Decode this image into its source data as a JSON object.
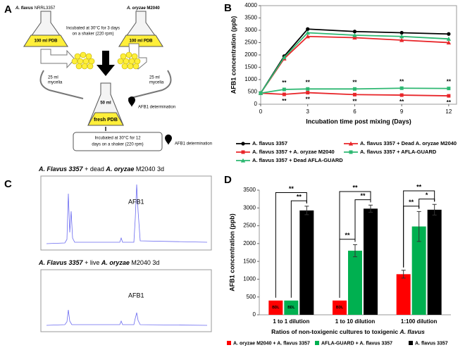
{
  "panel_labels": [
    "A",
    "B",
    "C",
    "D"
  ],
  "diagram": {
    "flask_left": {
      "species": "A. flavus",
      "strain": "NRRL3357",
      "medium": "100 ml PDB"
    },
    "flask_right": {
      "species": "A. oryzae",
      "strain": "M2040",
      "medium": "100 ml PDB"
    },
    "incubation_1": [
      "Incubated at 30°C for 3 days",
      "on a shaker (220 rpm)"
    ],
    "mycelia_left": [
      "25 ml",
      "mycelia"
    ],
    "mycelia_right": [
      "25 ml",
      "mycelia"
    ],
    "flask_mix": {
      "volume": "50 ml",
      "medium": "fresh PDB"
    },
    "determination_1": "AFB1 determination",
    "incubation_2": [
      "Incubated at 30°C for 12",
      "days on a shaker (220 rpm)"
    ],
    "determination_2": "AFB1 determination"
  },
  "chromatograms": [
    {
      "title_species": "A. Flavus",
      "title_strain": "3357",
      "title_mid": "+ dead",
      "title_partner": "A. oryzae",
      "title_end": "M2040  3d",
      "peak_label": "AFB1"
    },
    {
      "title_species": "A. Flavus",
      "title_strain": "3357",
      "title_mid": "+ live",
      "title_partner": "A. oryzae",
      "title_end": "M2040  3d",
      "peak_label": "AFB1"
    }
  ],
  "chart_data": [
    {
      "type": "line",
      "ylabel": "AFB1 concentration (ppb)",
      "xlabel": "Incubation time post mixing (Days)",
      "x": [
        0,
        1.5,
        3,
        6,
        9,
        12
      ],
      "xlim": [
        0,
        12.5
      ],
      "xticks": [
        0,
        3,
        6,
        9,
        12
      ],
      "ylim": [
        0,
        4000
      ],
      "yticks": [
        0,
        500,
        1000,
        1500,
        2000,
        2500,
        3000,
        3500,
        4000
      ],
      "series": [
        {
          "name": "A. flavus 3357",
          "color": "#000000",
          "marker": "circle",
          "values": [
            450,
            1950,
            3050,
            2950,
            2900,
            2850
          ]
        },
        {
          "name": "A. flavus 3357 + Dead A. oryzae M2040",
          "color": "#e8262a",
          "marker": "triangle",
          "values": [
            450,
            1850,
            2750,
            2700,
            2600,
            2500
          ]
        },
        {
          "name": "A. flavus 3357 + A. oryzae M2040",
          "color": "#e8262a",
          "marker": "square",
          "values": [
            450,
            400,
            470,
            390,
            370,
            340
          ],
          "significance": [
            null,
            "**",
            "**",
            "**",
            "**",
            "**"
          ]
        },
        {
          "name": "A. flavus 3357 + AFLA-GUARD",
          "color": "#2eb872",
          "marker": "square",
          "values": [
            450,
            600,
            620,
            620,
            650,
            640
          ],
          "significance": [
            null,
            "**",
            "**",
            "**",
            "**",
            "**"
          ]
        },
        {
          "name": "A. flavus 3357 + Dead AFLA-GUARD",
          "color": "#2eb872",
          "marker": "triangle",
          "values": [
            450,
            1900,
            2900,
            2800,
            2750,
            2650
          ]
        }
      ]
    },
    {
      "type": "bar",
      "ylabel": "AFB1 concentration (ppb)",
      "xlabel_prefix": "Ratios of non-toxigenic cultures to toxigenic",
      "xlabel_species": "A. flavus",
      "categories": [
        "1 to 1 dilution",
        "1 to 10 dilution",
        "1:100 dilution"
      ],
      "ylim": [
        0,
        3500
      ],
      "yticks": [
        0,
        500,
        1000,
        1500,
        2000,
        2500,
        3000,
        3500
      ],
      "series": [
        {
          "name": "A. oryzae M2040 + A. flavus 3357",
          "color": "#ff0000",
          "values": [
            400,
            400,
            1140
          ],
          "value_labels": [
            "BDL",
            "BDL",
            null
          ],
          "errors": [
            null,
            null,
            110
          ]
        },
        {
          "name": "AFLA-GUARD + A. flavus 3357",
          "color": "#00b050",
          "values": [
            400,
            1800,
            2480
          ],
          "value_labels": [
            "BDL",
            null,
            null
          ],
          "errors": [
            null,
            170,
            420
          ]
        },
        {
          "name": "A. flavus 3357",
          "color": "#000000",
          "values": [
            2930,
            2980,
            2950
          ],
          "errors": [
            120,
            100,
            150
          ]
        }
      ],
      "comparisons": [
        {
          "category": 0,
          "series": [
            0,
            2
          ],
          "label": "**"
        },
        {
          "category": 0,
          "series": [
            1,
            2
          ],
          "label": "**"
        },
        {
          "category": 1,
          "series": [
            0,
            2
          ],
          "label": "**"
        },
        {
          "category": 1,
          "series": [
            0,
            1
          ],
          "label": "**"
        },
        {
          "category": 1,
          "series": [
            1,
            2
          ],
          "label": "**"
        },
        {
          "category": 2,
          "series": [
            0,
            2
          ],
          "label": "**"
        },
        {
          "category": 2,
          "series": [
            0,
            1
          ],
          "label": "**"
        },
        {
          "category": 2,
          "series": [
            1,
            2
          ],
          "label": "*"
        }
      ]
    }
  ]
}
